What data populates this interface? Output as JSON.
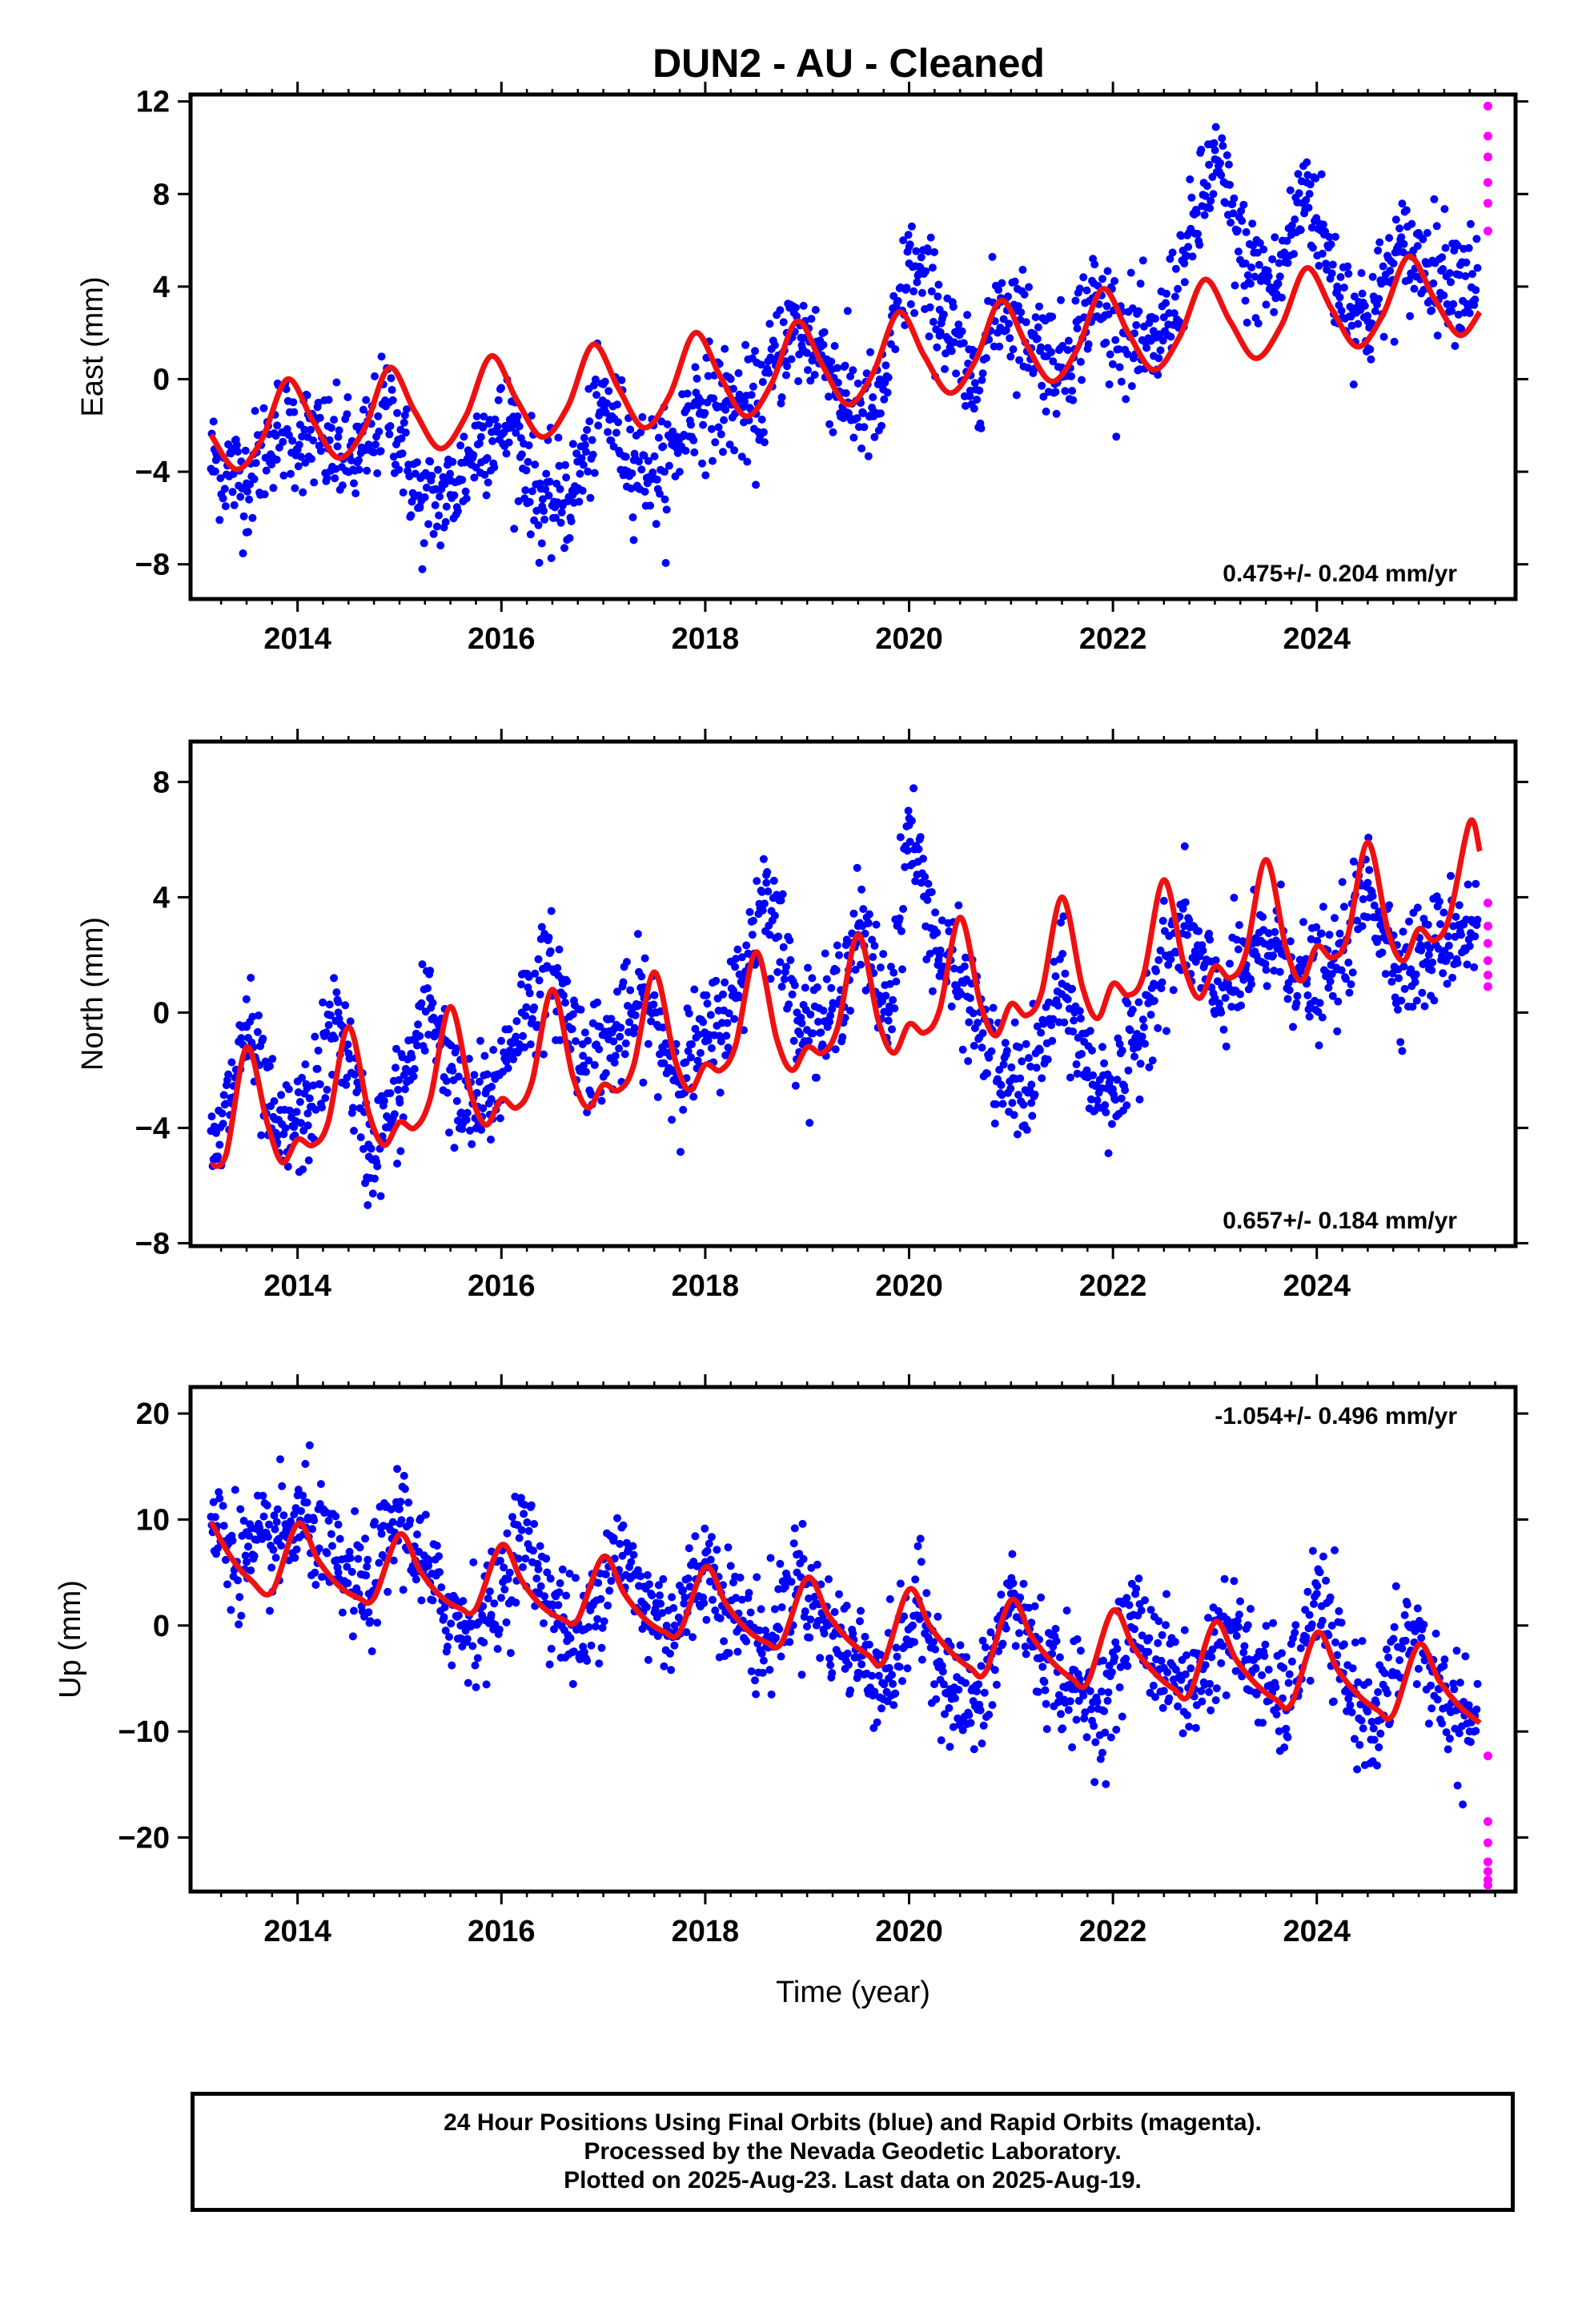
{
  "title": "DUN2  - AU - Cleaned",
  "colors": {
    "final_orbits": "#0000ff",
    "rapid_orbits": "#ff00ff",
    "model_fit": "#ee1111",
    "frame": "#000000"
  },
  "footer": {
    "line1": "24 Hour Positions Using Final Orbits (blue) and Rapid Orbits (magenta).",
    "line2": "Processed by the Nevada Geodetic Laboratory.",
    "line3": "Plotted on 2025-Aug-23. Last data on 2025-Aug-19."
  },
  "chart_data": [
    {
      "type": "scatter",
      "panel": "east",
      "ylabel": "East (mm)",
      "xlabel": "",
      "xlim": [
        2012.95,
        2025.95
      ],
      "ylim": [
        -9.5,
        12.3
      ],
      "x_ticks": [
        2014,
        2016,
        2018,
        2020,
        2022,
        2024
      ],
      "x_tick_labels": [
        "2014",
        "2016",
        "2018",
        "2020",
        "2022",
        "2024"
      ],
      "y_ticks": [
        -8,
        -4,
        0,
        4,
        8,
        12
      ],
      "y_tick_labels": [
        "−8",
        "−4",
        "0",
        "4",
        "8",
        "12"
      ],
      "rate_label": "0.475+/- 0.204 mm/yr",
      "rate_position": "bottom-right",
      "fit_curve": {
        "x": [
          2013.15,
          2013.4,
          2013.65,
          2013.9,
          2014.15,
          2014.4,
          2014.65,
          2014.9,
          2015.15,
          2015.4,
          2015.65,
          2015.9,
          2016.15,
          2016.4,
          2016.65,
          2016.9,
          2017.15,
          2017.4,
          2017.65,
          2017.9,
          2018.15,
          2018.4,
          2018.65,
          2018.9,
          2019.15,
          2019.4,
          2019.65,
          2019.9,
          2020.15,
          2020.4,
          2020.65,
          2020.9,
          2021.15,
          2021.4,
          2021.65,
          2021.9,
          2022.15,
          2022.4,
          2022.65,
          2022.9,
          2023.15,
          2023.4,
          2023.65,
          2023.9,
          2024.15,
          2024.4,
          2024.65,
          2024.9,
          2025.15,
          2025.4,
          2025.6
        ],
        "y": [
          -2.4,
          -3.9,
          -2.6,
          0.0,
          -1.8,
          -3.4,
          -2.2,
          0.5,
          -1.4,
          -3.0,
          -1.6,
          1.0,
          -0.9,
          -2.5,
          -1.2,
          1.5,
          -0.4,
          -2.1,
          -0.7,
          2.0,
          0.1,
          -1.6,
          -0.2,
          2.5,
          0.6,
          -1.1,
          0.3,
          2.9,
          1.0,
          -0.6,
          0.8,
          3.4,
          1.5,
          -0.1,
          1.3,
          3.9,
          2.0,
          0.4,
          1.8,
          4.3,
          2.5,
          0.9,
          2.3,
          4.8,
          3.0,
          1.4,
          2.8,
          5.3,
          3.5,
          1.9,
          2.9
        ]
      },
      "final_series": {
        "x": [
          2013.2,
          2013.5,
          2013.8,
          2014.1,
          2014.3,
          2014.6,
          2014.9,
          2015.2,
          2015.5,
          2015.8,
          2016.1,
          2016.4,
          2016.7,
          2017.0,
          2017.3,
          2017.6,
          2017.9,
          2018.2,
          2018.5,
          2018.8,
          2019.1,
          2019.4,
          2019.7,
          2020.0,
          2020.3,
          2020.6,
          2020.9,
          2021.2,
          2021.5,
          2021.8,
          2022.1,
          2022.4,
          2022.7,
          2023.0,
          2023.3,
          2023.6,
          2023.9,
          2024.2,
          2024.5,
          2024.8,
          2025.1,
          2025.4
        ],
        "y": [
          -3.5,
          -4.5,
          -2.0,
          -2.5,
          -3.0,
          -3.5,
          -1.0,
          -5.5,
          -5.0,
          -2.5,
          -2.0,
          -5.5,
          -5.0,
          -1.0,
          -3.5,
          -4.0,
          -1.0,
          -1.0,
          -1.5,
          2.0,
          1.5,
          -1.0,
          -1.5,
          5.0,
          3.0,
          -0.5,
          3.5,
          2.0,
          0.5,
          3.5,
          2.0,
          1.0,
          5.0,
          9.5,
          5.0,
          4.0,
          8.5,
          4.0,
          2.5,
          5.5,
          5.0,
          4.5
        ]
      },
      "rapid_series": {
        "x": [
          2025.6,
          2025.6,
          2025.6,
          2025.6,
          2025.6,
          2025.6
        ],
        "y": [
          11.8,
          10.5,
          9.6,
          8.5,
          7.6,
          6.4
        ]
      }
    },
    {
      "type": "scatter",
      "panel": "north",
      "ylabel": "North (mm)",
      "xlabel": "",
      "xlim": [
        2012.95,
        2025.95
      ],
      "ylim": [
        -8.1,
        9.4
      ],
      "x_ticks": [
        2014,
        2016,
        2018,
        2020,
        2022,
        2024
      ],
      "x_tick_labels": [
        "2014",
        "2016",
        "2018",
        "2020",
        "2022",
        "2024"
      ],
      "y_ticks": [
        -8,
        -4,
        0,
        4,
        8
      ],
      "y_tick_labels": [
        "−8",
        "−4",
        "0",
        "4",
        "8"
      ],
      "rate_label": "0.657+/- 0.184 mm/yr",
      "rate_position": "bottom-right",
      "fit_curve": {
        "x": [
          2013.15,
          2013.3,
          2013.5,
          2013.7,
          2013.85,
          2014.0,
          2014.15,
          2014.3,
          2014.5,
          2014.7,
          2014.85,
          2015.0,
          2015.15,
          2015.3,
          2015.5,
          2015.7,
          2015.85,
          2016.0,
          2016.15,
          2016.3,
          2016.5,
          2016.7,
          2016.85,
          2017.0,
          2017.15,
          2017.3,
          2017.5,
          2017.7,
          2017.85,
          2018.0,
          2018.15,
          2018.3,
          2018.5,
          2018.7,
          2018.85,
          2019.0,
          2019.15,
          2019.3,
          2019.5,
          2019.7,
          2019.85,
          2020.0,
          2020.15,
          2020.3,
          2020.5,
          2020.7,
          2020.85,
          2021.0,
          2021.15,
          2021.3,
          2021.5,
          2021.7,
          2021.85,
          2022.0,
          2022.15,
          2022.3,
          2022.5,
          2022.7,
          2022.85,
          2023.0,
          2023.15,
          2023.3,
          2023.5,
          2023.7,
          2023.85,
          2024.0,
          2024.15,
          2024.3,
          2024.5,
          2024.7,
          2024.85,
          2025.0,
          2025.15,
          2025.3,
          2025.5,
          2025.6
        ],
        "y": [
          -5.3,
          -4.9,
          -1.2,
          -3.8,
          -5.2,
          -4.4,
          -4.6,
          -3.8,
          -0.5,
          -3.5,
          -4.6,
          -3.8,
          -4.0,
          -3.0,
          0.2,
          -2.8,
          -3.9,
          -3.0,
          -3.3,
          -2.4,
          0.8,
          -2.2,
          -3.3,
          -2.5,
          -2.7,
          -1.8,
          1.4,
          -1.6,
          -2.7,
          -1.8,
          -2.0,
          -1.1,
          2.1,
          -0.9,
          -2.0,
          -1.2,
          -1.4,
          -0.5,
          2.7,
          -0.3,
          -1.4,
          -0.4,
          -0.7,
          0.1,
          3.3,
          0.3,
          -0.8,
          0.3,
          -0.1,
          0.7,
          4.0,
          0.9,
          -0.2,
          1.0,
          0.6,
          1.3,
          4.6,
          1.6,
          0.5,
          1.6,
          1.2,
          2.0,
          5.3,
          2.2,
          1.1,
          2.3,
          1.9,
          2.6,
          5.9,
          2.8,
          1.8,
          2.9,
          2.5,
          3.3,
          6.6,
          5.6
        ]
      },
      "final_series": {
        "x": [
          2013.2,
          2013.5,
          2013.8,
          2014.1,
          2014.4,
          2014.7,
          2015.0,
          2015.3,
          2015.6,
          2015.9,
          2016.2,
          2016.5,
          2016.8,
          2017.1,
          2017.4,
          2017.7,
          2018.0,
          2018.3,
          2018.6,
          2018.9,
          2019.2,
          2019.5,
          2019.8,
          2020.0,
          2020.3,
          2020.6,
          2020.9,
          2021.2,
          2021.5,
          2021.8,
          2022.1,
          2022.4,
          2022.7,
          2023.0,
          2023.3,
          2023.6,
          2023.9,
          2024.2,
          2024.5,
          2024.8,
          2025.1,
          2025.4
        ],
        "y": [
          -5.0,
          -0.5,
          -4.5,
          -3.5,
          0.0,
          -5.0,
          -3.0,
          0.5,
          -3.5,
          -3.0,
          0.0,
          1.5,
          -1.5,
          -1.0,
          0.5,
          -2.0,
          -1.0,
          0.5,
          4.5,
          0.0,
          -0.5,
          3.0,
          0.0,
          6.5,
          2.0,
          0.5,
          -2.5,
          -2.5,
          1.0,
          -2.5,
          -2.5,
          1.0,
          3.0,
          0.5,
          1.5,
          2.5,
          1.0,
          1.5,
          4.5,
          1.5,
          2.0,
          3.0
        ]
      },
      "rapid_series": {
        "x": [
          2025.6,
          2025.6,
          2025.6,
          2025.6,
          2025.6,
          2025.6
        ],
        "y": [
          3.8,
          3.0,
          2.4,
          1.8,
          1.3,
          0.9
        ]
      }
    },
    {
      "type": "scatter",
      "panel": "up",
      "ylabel": "Up (mm)",
      "xlabel": "Time (year)",
      "xlim": [
        2012.95,
        2025.95
      ],
      "ylim": [
        -25.1,
        22.5
      ],
      "x_ticks": [
        2014,
        2016,
        2018,
        2020,
        2022,
        2024
      ],
      "x_tick_labels": [
        "2014",
        "2016",
        "2018",
        "2020",
        "2022",
        "2024"
      ],
      "y_ticks": [
        -20,
        -10,
        0,
        10,
        20
      ],
      "y_tick_labels": [
        "−20",
        "−10",
        "0",
        "10",
        "20"
      ],
      "rate_label": "-1.054+/- 0.496 mm/yr",
      "rate_position": "top-right",
      "fit_curve": {
        "x": [
          2013.15,
          2013.35,
          2013.55,
          2013.75,
          2014.0,
          2014.2,
          2014.4,
          2014.6,
          2014.75,
          2015.0,
          2015.2,
          2015.4,
          2015.6,
          2015.75,
          2016.0,
          2016.2,
          2016.4,
          2016.6,
          2016.75,
          2017.0,
          2017.2,
          2017.4,
          2017.6,
          2017.75,
          2018.0,
          2018.2,
          2018.4,
          2018.6,
          2018.75,
          2019.0,
          2019.2,
          2019.4,
          2019.6,
          2019.75,
          2020.0,
          2020.2,
          2020.4,
          2020.6,
          2020.75,
          2021.0,
          2021.2,
          2021.4,
          2021.6,
          2021.75,
          2022.0,
          2022.2,
          2022.4,
          2022.6,
          2022.75,
          2023.0,
          2023.2,
          2023.4,
          2023.6,
          2023.75,
          2024.0,
          2024.2,
          2024.4,
          2024.6,
          2024.75,
          2025.0,
          2025.2,
          2025.4,
          2025.6
        ],
        "y": [
          9.8,
          6.4,
          4.2,
          3.2,
          9.6,
          6.2,
          3.8,
          2.6,
          2.6,
          8.6,
          5.2,
          2.8,
          1.6,
          1.6,
          7.6,
          4.2,
          1.8,
          0.6,
          0.6,
          6.5,
          3.1,
          0.7,
          -0.6,
          -0.6,
          5.5,
          2.1,
          -0.3,
          -1.6,
          -1.6,
          4.5,
          1.1,
          -1.3,
          -2.8,
          -3.4,
          3.4,
          0.0,
          -2.4,
          -4.0,
          -4.4,
          2.4,
          -1.0,
          -3.4,
          -5.0,
          -5.4,
          1.4,
          -2.0,
          -4.4,
          -6.0,
          -6.5,
          0.3,
          -3.1,
          -5.5,
          -7.0,
          -7.4,
          -0.7,
          -4.1,
          -6.5,
          -8.0,
          -8.4,
          -1.8,
          -5.2,
          -7.6,
          -9.2
        ]
      },
      "final_series": {
        "x": [
          2013.2,
          2013.5,
          2013.8,
          2014.1,
          2014.4,
          2014.7,
          2015.0,
          2015.3,
          2015.6,
          2015.9,
          2016.2,
          2016.5,
          2016.8,
          2017.1,
          2017.4,
          2017.7,
          2018.0,
          2018.3,
          2018.6,
          2018.9,
          2019.2,
          2019.5,
          2019.8,
          2020.1,
          2020.4,
          2020.7,
          2021.0,
          2021.3,
          2021.6,
          2021.9,
          2022.2,
          2022.5,
          2022.8,
          2023.1,
          2023.4,
          2023.7,
          2024.0,
          2024.3,
          2024.6,
          2024.9,
          2025.2,
          2025.5
        ],
        "y": [
          9.0,
          6.0,
          8.0,
          10.0,
          5.0,
          3.0,
          11.0,
          4.0,
          0.0,
          1.0,
          9.0,
          2.0,
          -2.0,
          8.0,
          2.0,
          0.0,
          6.0,
          1.0,
          -2.0,
          5.0,
          0.0,
          -3.0,
          -5.0,
          2.0,
          -6.0,
          -8.0,
          3.0,
          -3.0,
          -6.0,
          -8.0,
          1.0,
          -4.0,
          -6.0,
          0.0,
          -4.0,
          -8.0,
          3.0,
          -6.0,
          -9.0,
          0.0,
          -6.0,
          -10.0
        ]
      },
      "rapid_series": {
        "x": [
          2025.6,
          2025.6,
          2025.6,
          2025.6,
          2025.6,
          2025.6,
          2025.6
        ],
        "y": [
          -12.3,
          -18.5,
          -20.5,
          -22.3,
          -23.2,
          -24.0,
          -24.5
        ]
      }
    }
  ]
}
